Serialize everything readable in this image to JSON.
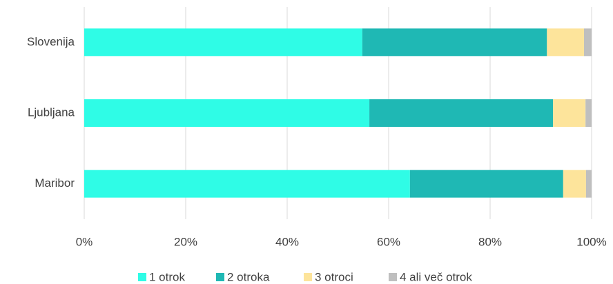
{
  "chart_data": {
    "type": "stacked_bar_horizontal",
    "categories": [
      "Slovenija",
      "Ljubljana",
      "Maribor"
    ],
    "series": [
      {
        "name": "1 otrok",
        "color": "#2ffce6",
        "values": [
          54.8,
          56.2,
          64.2
        ]
      },
      {
        "name": "2 otroka",
        "color": "#1fb8b4",
        "values": [
          36.4,
          36.2,
          30.2
        ]
      },
      {
        "name": "3 otroci",
        "color": "#fde49b",
        "values": [
          7.3,
          6.4,
          4.5
        ]
      },
      {
        "name": "4 ali več otrok",
        "color": "#bfbfbf",
        "values": [
          1.5,
          1.2,
          1.1
        ]
      }
    ],
    "xlim": [
      0,
      100
    ],
    "xticks": [
      {
        "value": 0,
        "label": "0%"
      },
      {
        "value": 20,
        "label": "20%"
      },
      {
        "value": 40,
        "label": "40%"
      },
      {
        "value": 60,
        "label": "60%"
      },
      {
        "value": 80,
        "label": "80%"
      },
      {
        "value": 100,
        "label": "100%"
      }
    ],
    "grid": true,
    "legend": "bottom"
  }
}
